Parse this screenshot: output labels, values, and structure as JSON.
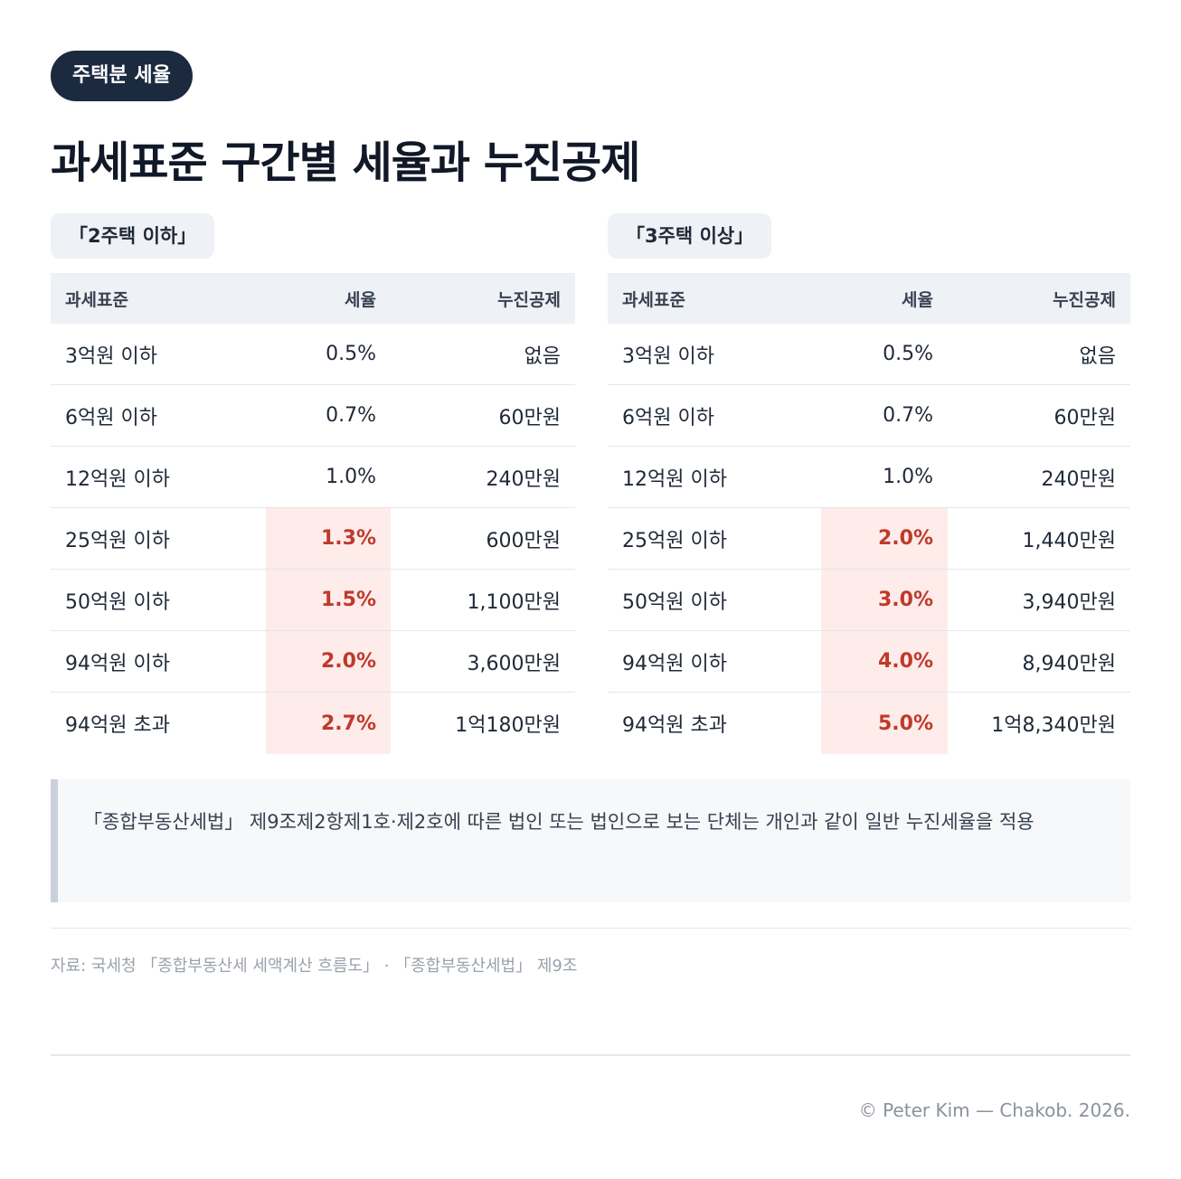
{
  "tag": "주택분 세율",
  "title": "과세표준 구간별 세율과 누진공제",
  "tables": [
    {
      "label": "「2주택 이하」",
      "headers": [
        "과세표준",
        "세율",
        "누진공제"
      ],
      "rows": [
        {
          "base": "3억원 이하",
          "rate": "0.5%",
          "deduction": "없음",
          "highlight": false
        },
        {
          "base": "6억원 이하",
          "rate": "0.7%",
          "deduction": "60만원",
          "highlight": false
        },
        {
          "base": "12억원 이하",
          "rate": "1.0%",
          "deduction": "240만원",
          "highlight": false
        },
        {
          "base": "25억원 이하",
          "rate": "1.3%",
          "deduction": "600만원",
          "highlight": true
        },
        {
          "base": "50억원 이하",
          "rate": "1.5%",
          "deduction": "1,100만원",
          "highlight": true
        },
        {
          "base": "94억원 이하",
          "rate": "2.0%",
          "deduction": "3,600만원",
          "highlight": true
        },
        {
          "base": "94억원 초과",
          "rate": "2.7%",
          "deduction": "1억180만원",
          "highlight": true
        }
      ]
    },
    {
      "label": "「3주택 이상」",
      "headers": [
        "과세표준",
        "세율",
        "누진공제"
      ],
      "rows": [
        {
          "base": "3억원 이하",
          "rate": "0.5%",
          "deduction": "없음",
          "highlight": false
        },
        {
          "base": "6억원 이하",
          "rate": "0.7%",
          "deduction": "60만원",
          "highlight": false
        },
        {
          "base": "12억원 이하",
          "rate": "1.0%",
          "deduction": "240만원",
          "highlight": false
        },
        {
          "base": "25억원 이하",
          "rate": "2.0%",
          "deduction": "1,440만원",
          "highlight": true
        },
        {
          "base": "50억원 이하",
          "rate": "3.0%",
          "deduction": "3,940만원",
          "highlight": true
        },
        {
          "base": "94억원 이하",
          "rate": "4.0%",
          "deduction": "8,940만원",
          "highlight": true
        },
        {
          "base": "94억원 초과",
          "rate": "5.0%",
          "deduction": "1억8,340만원",
          "highlight": true
        }
      ]
    }
  ],
  "note": "「종합부동산세법」 제9조제2항제1호·제2호에 따른 법인 또는 법인으로 보는 단체는 개인과 같이 일반 누진세율을 적용",
  "source": "자료: 국세청 「종합부동산세 세액계산 흐름도」 · 「종합부동산세법」 제9조",
  "copyright": "© Peter Kim — Chakob. 2026.",
  "colors": {
    "tag_bg": "#1c2a40",
    "highlight_bg": "#fdecea",
    "highlight_text": "#c0392b",
    "header_bg": "#eef1f5"
  }
}
